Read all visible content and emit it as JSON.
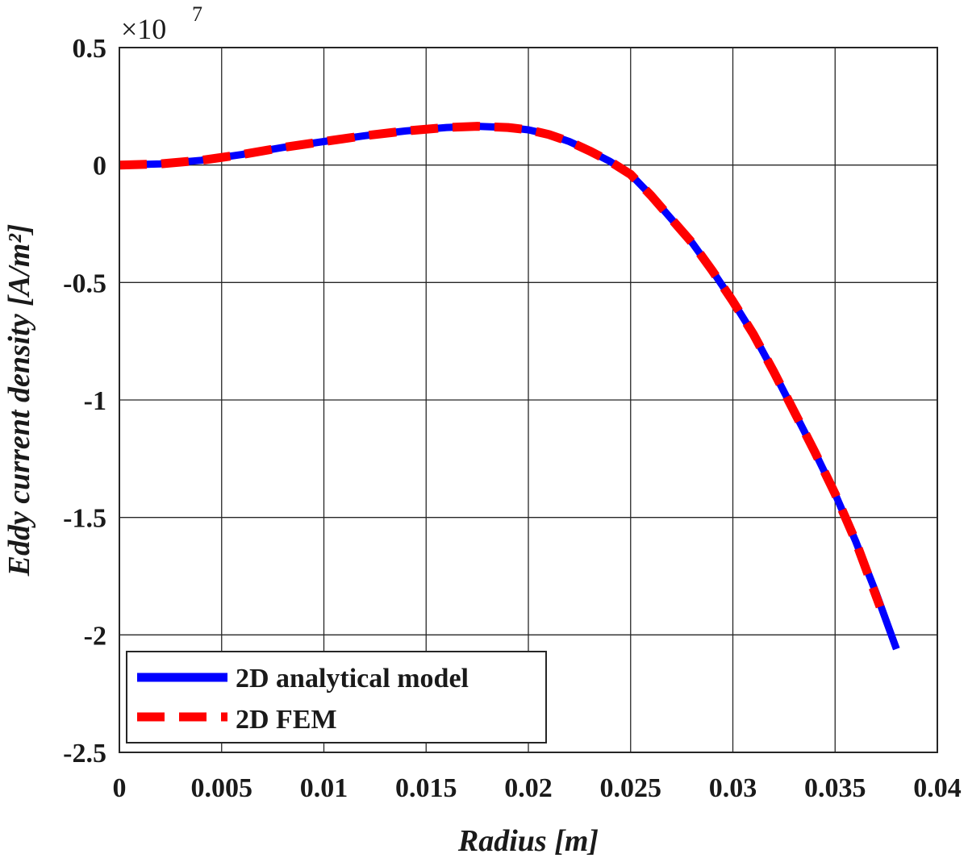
{
  "chart_data": {
    "type": "line",
    "title": "",
    "xlabel": "Radius [m]",
    "ylabel": "Eddy current density [A/m²]",
    "y_multiplier": "×10",
    "y_multiplier_exponent": "7",
    "xlim": [
      0,
      0.04
    ],
    "ylim": [
      -2.5,
      0.5
    ],
    "grid": true,
    "legend_position": "bottom-left",
    "x_ticks": [
      {
        "value": 0,
        "label": "0"
      },
      {
        "value": 0.005,
        "label": "0.005"
      },
      {
        "value": 0.01,
        "label": "0.01"
      },
      {
        "value": 0.015,
        "label": "0.015"
      },
      {
        "value": 0.02,
        "label": "0.02"
      },
      {
        "value": 0.025,
        "label": "0.025"
      },
      {
        "value": 0.03,
        "label": "0.03"
      },
      {
        "value": 0.035,
        "label": "0.035"
      },
      {
        "value": 0.04,
        "label": "0.04"
      }
    ],
    "y_ticks": [
      {
        "value": 0.5,
        "label": "0.5"
      },
      {
        "value": 0,
        "label": "0"
      },
      {
        "value": -0.5,
        "label": "-0.5"
      },
      {
        "value": -1,
        "label": "-1"
      },
      {
        "value": -1.5,
        "label": "-1.5"
      },
      {
        "value": -2,
        "label": "-2"
      },
      {
        "value": -2.5,
        "label": "-2.5"
      }
    ],
    "series": [
      {
        "name": "2D analytical model",
        "color": "#0000ff",
        "style": "solid",
        "x": [
          0,
          0.002,
          0.004,
          0.006,
          0.008,
          0.01,
          0.012,
          0.014,
          0.016,
          0.0175,
          0.019,
          0.02,
          0.021,
          0.022,
          0.023,
          0.024,
          0.025,
          0.026,
          0.027,
          0.028,
          0.029,
          0.03,
          0.031,
          0.032,
          0.033,
          0.034,
          0.035,
          0.036,
          0.037,
          0.038
        ],
        "values": [
          0,
          0.005,
          0.02,
          0.045,
          0.075,
          0.1,
          0.125,
          0.145,
          0.16,
          0.165,
          0.16,
          0.15,
          0.13,
          0.1,
          0.06,
          0.015,
          -0.04,
          -0.13,
          -0.23,
          -0.33,
          -0.45,
          -0.58,
          -0.72,
          -0.88,
          -1.05,
          -1.22,
          -1.4,
          -1.6,
          -1.82,
          -2.06
        ]
      },
      {
        "name": "2D FEM",
        "color": "#ff0000",
        "style": "dashed",
        "x": [
          0,
          0.002,
          0.004,
          0.006,
          0.008,
          0.01,
          0.012,
          0.014,
          0.016,
          0.0175,
          0.019,
          0.02,
          0.021,
          0.022,
          0.023,
          0.024,
          0.025,
          0.026,
          0.027,
          0.028,
          0.029,
          0.03,
          0.031,
          0.032,
          0.033,
          0.034,
          0.035,
          0.036,
          0.0372
        ],
        "values": [
          0,
          0.005,
          0.02,
          0.045,
          0.075,
          0.1,
          0.125,
          0.145,
          0.16,
          0.165,
          0.16,
          0.15,
          0.13,
          0.1,
          0.06,
          0.015,
          -0.04,
          -0.13,
          -0.23,
          -0.33,
          -0.45,
          -0.58,
          -0.72,
          -0.88,
          -1.05,
          -1.22,
          -1.4,
          -1.6,
          -1.88
        ]
      }
    ]
  }
}
